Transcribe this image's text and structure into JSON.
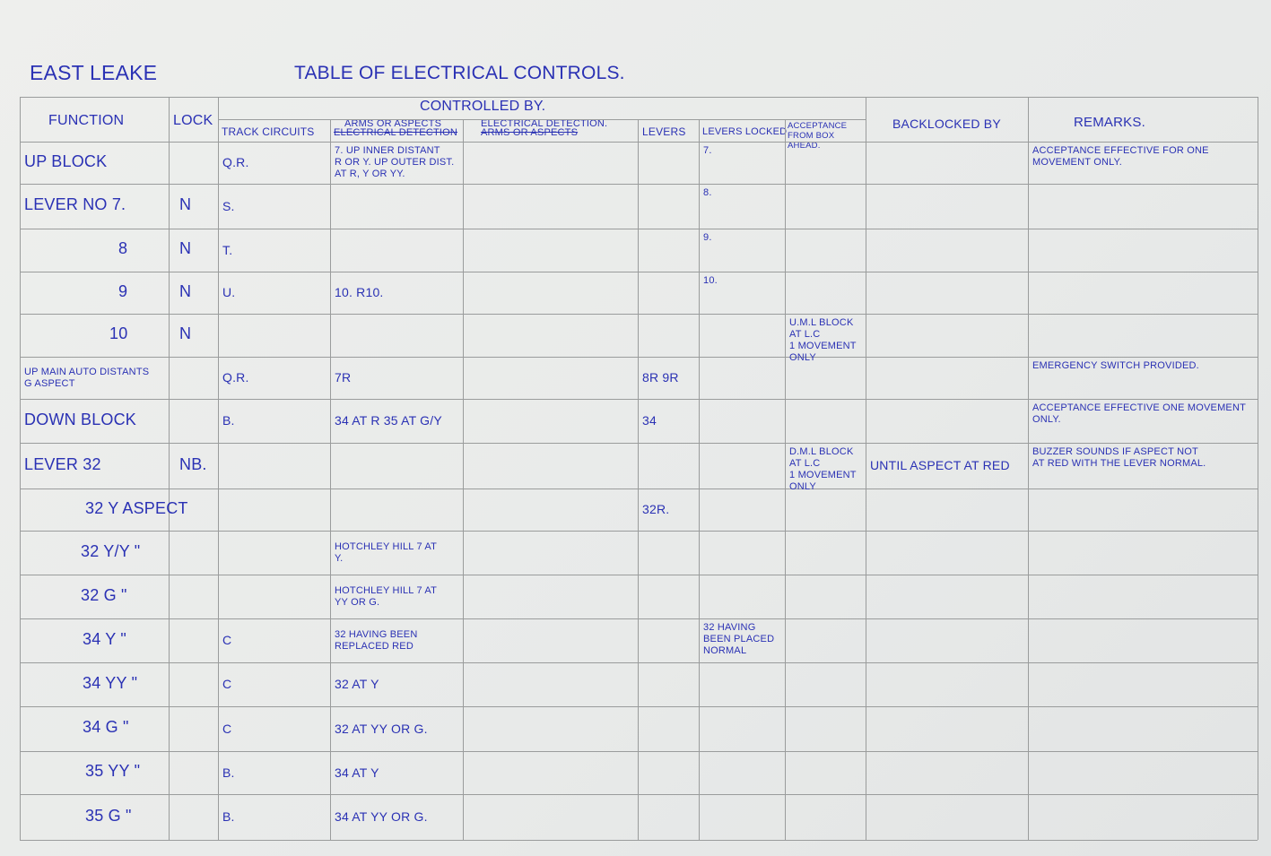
{
  "document": {
    "station": "East Leake",
    "title": "Table of Electrical Controls."
  },
  "headers": {
    "function": "Function",
    "lock": "Lock",
    "controlled_by": "Controlled By.",
    "track_circuits": "Track Circuits",
    "arms_or_aspects": "Arms or Aspects",
    "arms_struck": "Electrical Detection",
    "electrical_detection": "Electrical Detection.",
    "electrical_struck": "Arms or Aspects",
    "levers": "Levers",
    "levers_locked": "Levers Locked",
    "acceptance": "Acceptance from Box Ahead.",
    "backlocked_by": "Backlocked By",
    "remarks": "Remarks."
  },
  "ink_color": "#2a31b4",
  "rows": [
    {
      "function": "Up Block",
      "lock": "",
      "track": "Q.R.",
      "arms": "7. Up Inner Distant\nR or Y. Up Outer Dist.\nat R, Y or YY.",
      "elec": "",
      "levers": "",
      "locked": "7.",
      "acceptance": "",
      "backlocked": "",
      "remarks": "Acceptance effective for one\nmovement only."
    },
    {
      "function": "Lever No 7.",
      "lock": "N",
      "track": "S.",
      "arms": "",
      "elec": "",
      "levers": "",
      "locked": "8.",
      "acceptance": "",
      "backlocked": "",
      "remarks": ""
    },
    {
      "function": "8",
      "lock": "N",
      "track": "T.",
      "arms": "",
      "elec": "",
      "levers": "",
      "locked": "9.",
      "acceptance": "",
      "backlocked": "",
      "remarks": ""
    },
    {
      "function": "9",
      "lock": "N",
      "track": "U.",
      "arms": "10. R10.",
      "elec": "",
      "levers": "",
      "locked": "10.",
      "acceptance": "",
      "backlocked": "",
      "remarks": ""
    },
    {
      "function": "10",
      "lock": "N",
      "track": "",
      "arms": "",
      "elec": "",
      "levers": "",
      "locked": "",
      "acceptance": "U.M.L Block\nat L.C\n1 movement\nonly",
      "backlocked": "",
      "remarks": ""
    },
    {
      "function": "Up Main Auto Distants\nG Aspect",
      "lock": "",
      "track": "Q.R.",
      "arms": "7R",
      "elec": "",
      "levers": "8R 9R",
      "locked": "",
      "acceptance": "",
      "backlocked": "",
      "remarks": "Emergency switch provided."
    },
    {
      "function": "Down Block",
      "lock": "",
      "track": "B.",
      "arms": "34 at R  35 at G/Y",
      "elec": "",
      "levers": "34",
      "locked": "",
      "acceptance": "",
      "backlocked": "",
      "remarks": "Acceptance effective one movement\nonly."
    },
    {
      "function": "Lever 32",
      "lock": "NB.",
      "track": "",
      "arms": "",
      "elec": "",
      "levers": "",
      "locked": "",
      "acceptance": "D.M.L Block\nat L.C\n1 movement only",
      "backlocked": "Until aspect at Red",
      "remarks": "Buzzer sounds if aspect not\nat Red with the lever normal."
    },
    {
      "function": "32 Y Aspect",
      "lock": "",
      "track": "",
      "arms": "",
      "elec": "",
      "levers": "32R.",
      "locked": "",
      "acceptance": "",
      "backlocked": "",
      "remarks": ""
    },
    {
      "function": "32 Y/Y \"",
      "lock": "",
      "track": "",
      "arms": "Hotchley Hill 7 at\nY.",
      "elec": "",
      "levers": "",
      "locked": "",
      "acceptance": "",
      "backlocked": "",
      "remarks": ""
    },
    {
      "function": "32 G \"",
      "lock": "",
      "track": "",
      "arms": "Hotchley Hill 7 at\nYY or G.",
      "elec": "",
      "levers": "",
      "locked": "",
      "acceptance": "",
      "backlocked": "",
      "remarks": ""
    },
    {
      "function": "34 Y \"",
      "lock": "",
      "track": "C",
      "arms": "32 having been\nreplaced Red",
      "elec": "",
      "levers": "",
      "locked": "32 having\nbeen placed\nnormal",
      "acceptance": "",
      "backlocked": "",
      "remarks": ""
    },
    {
      "function": "34 YY \"",
      "lock": "",
      "track": "C",
      "arms": "32 at Y",
      "elec": "",
      "levers": "",
      "locked": "",
      "acceptance": "",
      "backlocked": "",
      "remarks": ""
    },
    {
      "function": "34 G \"",
      "lock": "",
      "track": "C",
      "arms": "32 at YY or G.",
      "elec": "",
      "levers": "",
      "locked": "",
      "acceptance": "",
      "backlocked": "",
      "remarks": ""
    },
    {
      "function": "35 YY \"",
      "lock": "",
      "track": "B.",
      "arms": "34 at Y",
      "elec": "",
      "levers": "",
      "locked": "",
      "acceptance": "",
      "backlocked": "",
      "remarks": ""
    },
    {
      "function": "35 G \"",
      "lock": "",
      "track": "B.",
      "arms": "34 at YY or G.",
      "elec": "",
      "levers": "",
      "locked": "",
      "acceptance": "",
      "backlocked": "",
      "remarks": ""
    }
  ]
}
